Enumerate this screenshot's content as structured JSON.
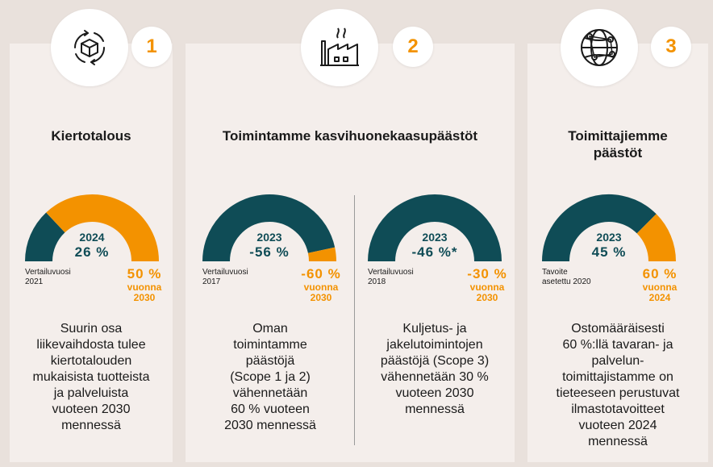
{
  "sections": [
    {
      "number": "1",
      "icon": "circular-box-icon",
      "title": "Kiertotalous",
      "gauges": [
        {
          "year": "2024",
          "value": "26 %",
          "fraction": 0.26,
          "base_label_1": "Vertailuvuosi",
          "base_label_2": "2021",
          "target_value": "50 %",
          "target_sub_1": "vuonna",
          "target_sub_2": "2030",
          "description": [
            "Suurin osa",
            "liikevaihdosta tulee",
            "kiertotalouden",
            "mukaisista tuotteista",
            "ja palveluista",
            "vuoteen 2030",
            "mennessä"
          ]
        }
      ]
    },
    {
      "number": "2",
      "icon": "factory-icon",
      "title": "Toimintamme kasvihuonekaasupäästöt",
      "gauges": [
        {
          "year": "2023",
          "value": "-56 %",
          "fraction": 0.933,
          "base_label_1": "Vertailuvuosi",
          "base_label_2": "2017",
          "target_value": "-60 %",
          "target_sub_1": "vuonna",
          "target_sub_2": "2030",
          "description": [
            "Oman",
            "toimintamme",
            "päästöjä",
            "(Scope 1 ja 2)",
            "vähennetään",
            "60 % vuoteen",
            "2030 mennessä"
          ]
        },
        {
          "year": "2023",
          "value": "-46 %*",
          "fraction": 1.0,
          "base_label_1": "Vertailuvuosi",
          "base_label_2": "2018",
          "target_value": "-30 %",
          "target_sub_1": "vuonna",
          "target_sub_2": "2030",
          "description": [
            "Kuljetus- ja",
            "jakelutoimintojen",
            "päästöjä (Scope 3)",
            "vähennetään 30 %",
            "vuoteen 2030",
            "mennessä"
          ]
        }
      ]
    },
    {
      "number": "3",
      "icon": "globe-network-icon",
      "title_lines": [
        "Toimittajiemme",
        "päästöt"
      ],
      "gauges": [
        {
          "year": "2023",
          "value": "45 %",
          "fraction": 0.75,
          "base_label_1": "Tavoite",
          "base_label_2": "asetettu 2020",
          "target_value": "60 %",
          "target_sub_1": "vuonna",
          "target_sub_2": "2024",
          "description": [
            "Ostomääräisesti",
            "60 %:llä tavaran- ja",
            "palvelun-",
            "toimittajistamme on",
            "tieteeseen perustuvat",
            "ilmastotavoitteet",
            "vuoteen 2024",
            "mennessä"
          ]
        }
      ]
    }
  ],
  "colors": {
    "teal": "#0f4c56",
    "orange": "#f39200",
    "panel": "#f4eeeb",
    "background": "#e9e1dc"
  }
}
